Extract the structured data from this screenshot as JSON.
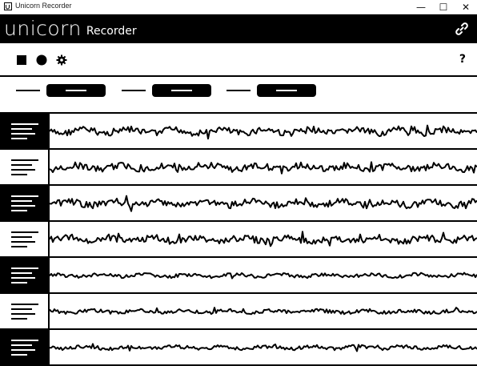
{
  "window": {
    "title": "Unicorn Recorder",
    "controls": {
      "minimize": "—",
      "maximize": "☐",
      "close": "✕"
    }
  },
  "header": {
    "logo_text": "unicorn",
    "logo_subtext": "Recorder",
    "link_icon": "link-icon"
  },
  "toolbar": {
    "stop_icon": "stop-icon",
    "record_icon": "record-icon",
    "settings_icon": "gear-icon",
    "help_label": "?"
  },
  "channel_strip": {
    "groups": 3
  },
  "channels": [
    {
      "theme": "dark"
    },
    {
      "theme": "light"
    },
    {
      "theme": "dark"
    },
    {
      "theme": "light"
    },
    {
      "theme": "dark"
    },
    {
      "theme": "light"
    },
    {
      "theme": "dark"
    }
  ],
  "colors": {
    "primary": "#000000",
    "background": "#ffffff"
  }
}
